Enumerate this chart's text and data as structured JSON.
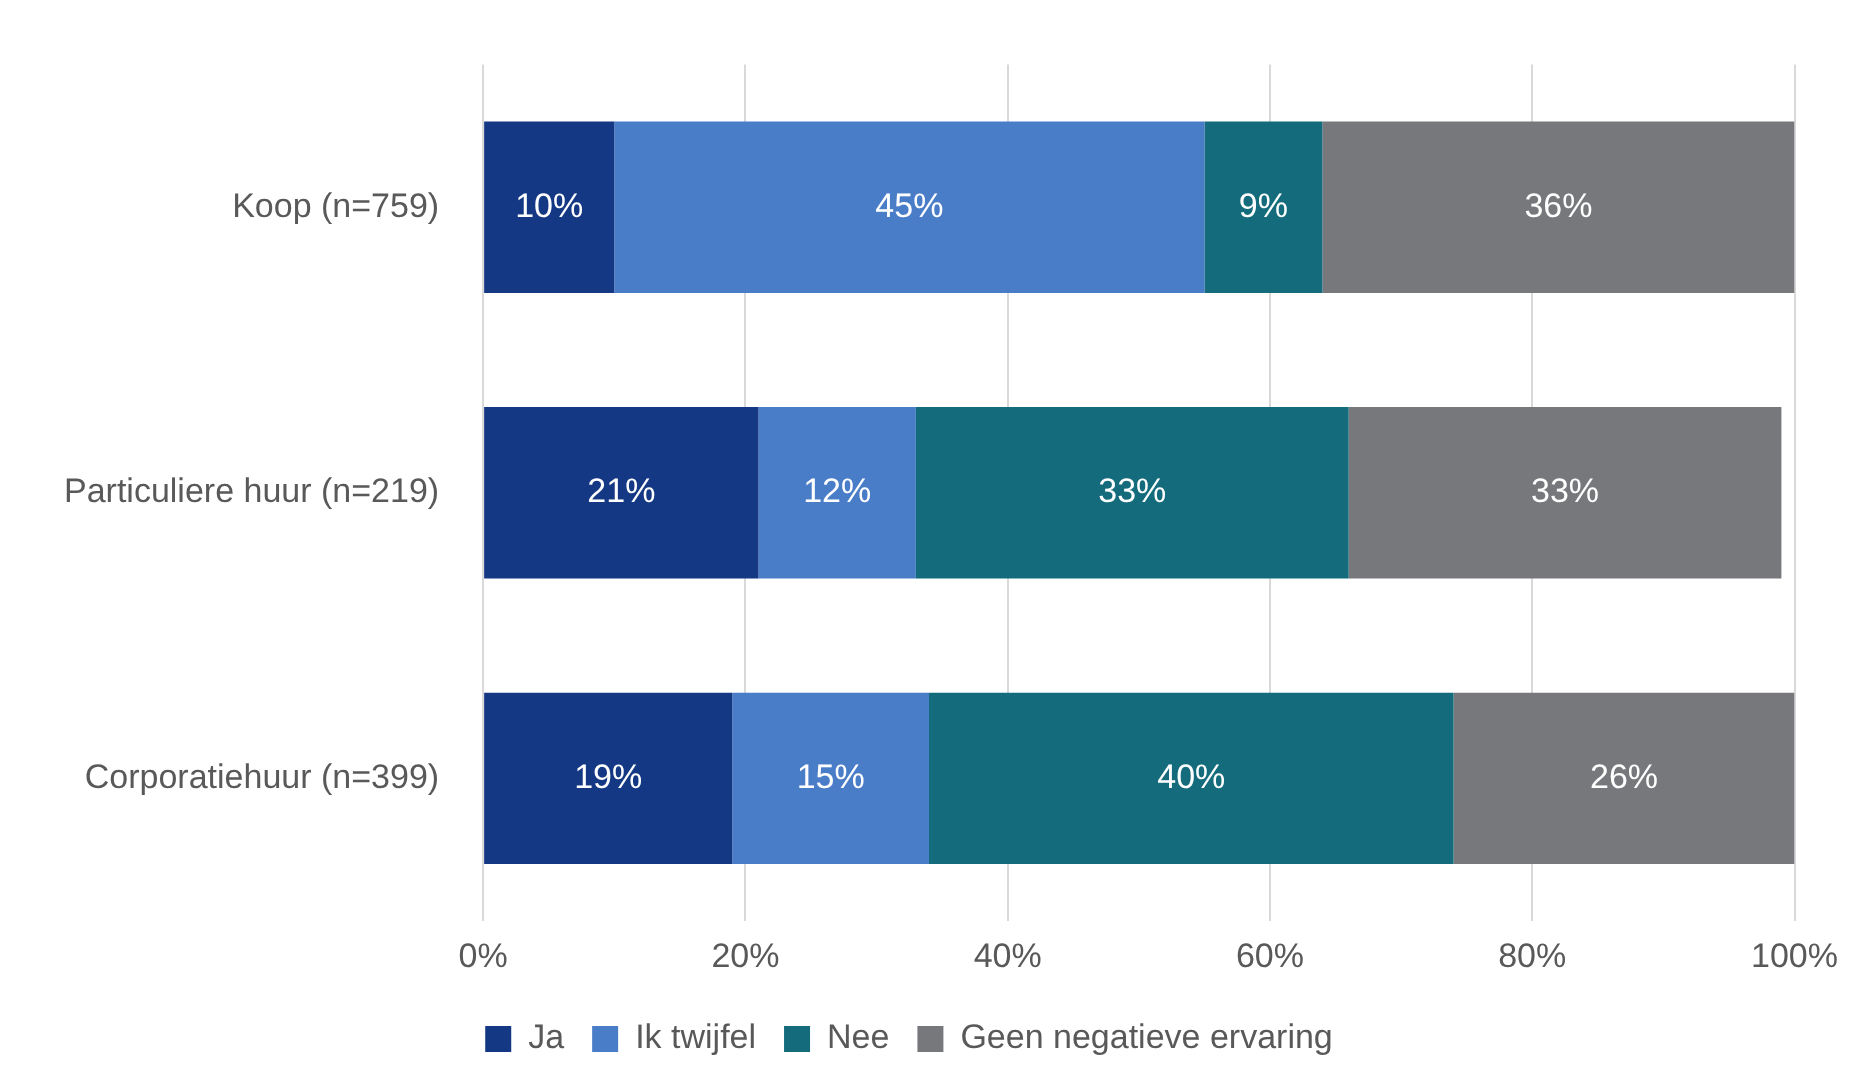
{
  "chart_data": {
    "type": "bar",
    "orientation": "horizontal",
    "stacked": true,
    "categories": [
      "Koop (n=759)",
      "Particuliere huur (n=219)",
      "Corporatiehuur (n=399)"
    ],
    "series": [
      {
        "name": "Ja",
        "color": "#143883",
        "values": [
          10,
          21,
          19
        ],
        "value_labels": [
          "10%",
          "21%",
          "19%"
        ]
      },
      {
        "name": "Ik twijfel",
        "color": "#4a7dc8",
        "values": [
          45,
          12,
          15
        ],
        "value_labels": [
          "45%",
          "12%",
          "15%"
        ]
      },
      {
        "name": "Nee",
        "color": "#136b7c",
        "values": [
          9,
          33,
          40
        ],
        "value_labels": [
          "9%",
          "33%",
          "40%"
        ]
      },
      {
        "name": "Geen negatieve ervaring",
        "color": "#77787c",
        "values": [
          36,
          33,
          26
        ],
        "value_labels": [
          "36%",
          "33%",
          "26%"
        ]
      }
    ],
    "xlim": [
      0,
      100
    ],
    "xticks": [
      {
        "value": 0,
        "label": "0%"
      },
      {
        "value": 20,
        "label": "20%"
      },
      {
        "value": 40,
        "label": "40%"
      },
      {
        "value": 60,
        "label": "60%"
      },
      {
        "value": 80,
        "label": "80%"
      },
      {
        "value": 100,
        "label": "100%"
      }
    ],
    "grid": "x",
    "legend": "bottom"
  }
}
